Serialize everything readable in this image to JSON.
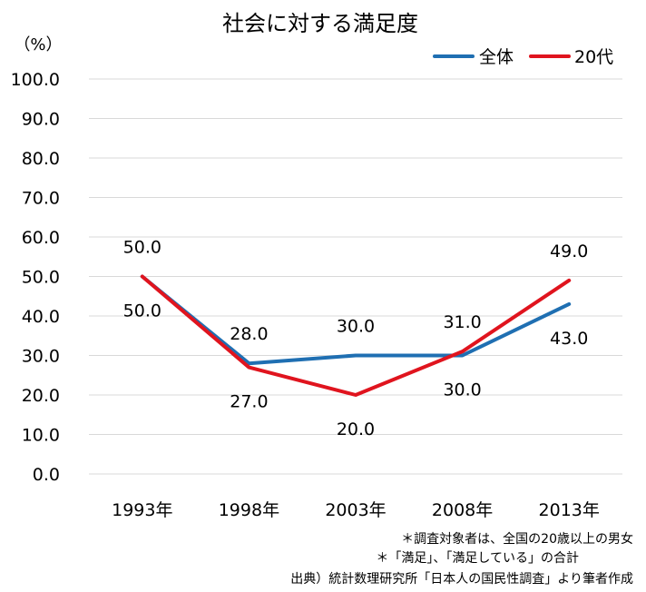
{
  "chart_data": {
    "type": "line",
    "title": "社会に対する満足度",
    "unit_label": "（%）",
    "categories": [
      "1993年",
      "1998年",
      "2003年",
      "2008年",
      "2013年"
    ],
    "series": [
      {
        "name": "全体",
        "color": "#1f6fb2",
        "values": [
          50.0,
          28.0,
          30.0,
          30.0,
          43.0
        ],
        "labels": [
          "50.0",
          "28.0",
          "30.0",
          "30.0",
          "43.0"
        ]
      },
      {
        "name": "20代",
        "color": "#e0141e",
        "values": [
          50.0,
          27.0,
          20.0,
          31.0,
          49.0
        ],
        "labels": [
          "50.0",
          "27.0",
          "20.0",
          "31.0",
          "49.0"
        ]
      }
    ],
    "ylim": [
      0,
      100
    ],
    "yticks": [
      "0.0",
      "10.0",
      "20.0",
      "30.0",
      "40.0",
      "50.0",
      "60.0",
      "70.0",
      "80.0",
      "90.0",
      "100.0"
    ],
    "grid": true,
    "legend_position": "top-right"
  },
  "notes": {
    "note1": "＊調査対象者は、全国の20歳以上の男女",
    "note2": "＊「満足」、「満足している」の合計",
    "source": "出典）統計数理研究所「日本人の国民性調査」より筆者作成"
  }
}
